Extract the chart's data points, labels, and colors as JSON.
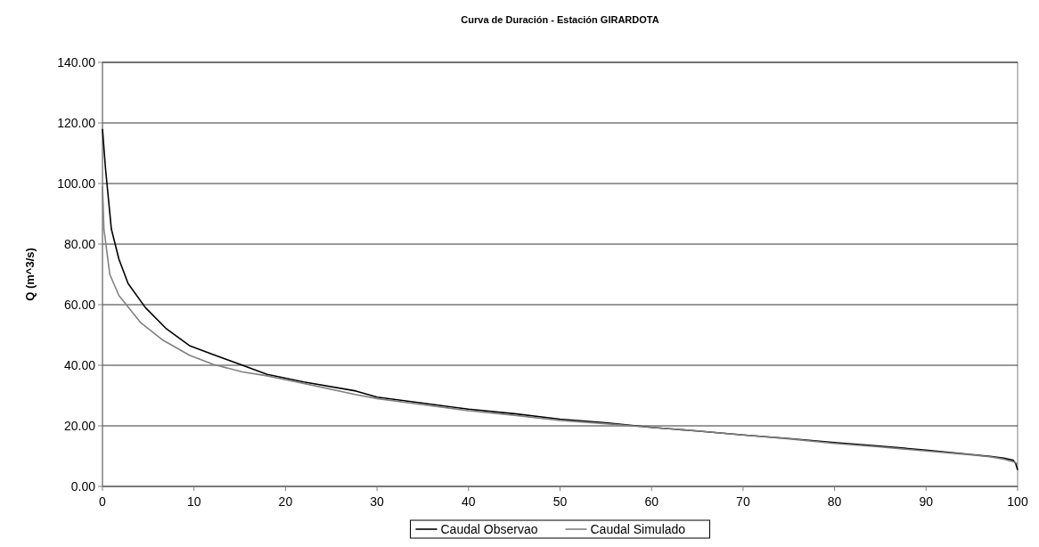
{
  "chart_data": {
    "type": "line",
    "title": "Curva de Duración - Estación GIRARDOTA",
    "ylabel": "Q (m^3/s)",
    "xlim": [
      0,
      100
    ],
    "xticks": [
      0,
      10,
      20,
      30,
      40,
      50,
      60,
      70,
      80,
      90,
      100
    ],
    "ylim": [
      0,
      140
    ],
    "yticks": [
      {
        "value": 0,
        "label": "0.00"
      },
      {
        "value": 20,
        "label": "20.00"
      },
      {
        "value": 40,
        "label": "40.00"
      },
      {
        "value": 60,
        "label": "60.00"
      },
      {
        "value": 80,
        "label": "80.00"
      },
      {
        "value": 100,
        "label": "100.00"
      },
      {
        "value": 120,
        "label": "120.00"
      },
      {
        "value": 140,
        "label": "140.00"
      }
    ],
    "grid": "y",
    "legend": "bottom",
    "marker": "none",
    "line_style": "solid",
    "series": [
      {
        "name": "Caudal Observao",
        "color": "#000000",
        "x": [
          0,
          0.33,
          0.65,
          0.97,
          1.8,
          2.8,
          4.7,
          7,
          9.5,
          12.1,
          15.3,
          18,
          22,
          27.7,
          30,
          35,
          40,
          45,
          50,
          55,
          60,
          65,
          70,
          75,
          80,
          85,
          90,
          95,
          97,
          98.5,
          99.5,
          99.8,
          100
        ],
        "values": [
          118,
          105,
          95,
          85,
          75,
          67,
          59,
          52,
          46.5,
          43.5,
          40,
          37,
          34.5,
          31.5,
          29.5,
          27.5,
          25.5,
          24,
          22.2,
          21,
          19.5,
          18.3,
          17,
          15.8,
          14.5,
          13.3,
          12,
          10.5,
          9.9,
          9.3,
          8.7,
          7.5,
          5.4
        ]
      },
      {
        "name": "Caudal Simulado",
        "color": "#808080",
        "x": [
          0,
          0.16,
          0.8,
          1.8,
          4.2,
          6.6,
          9.5,
          12.1,
          15.3,
          18,
          22,
          27.7,
          30,
          35,
          40,
          45,
          50,
          55,
          60,
          65,
          70,
          75,
          80,
          85,
          90,
          95,
          97,
          98.5,
          99.5,
          100
        ],
        "values": [
          99,
          85,
          70,
          63,
          54,
          48.3,
          43.3,
          40.3,
          37.8,
          36.5,
          34,
          30.3,
          29,
          27,
          25,
          23.5,
          21.8,
          20.7,
          19.5,
          18.3,
          17,
          15.7,
          14.2,
          13,
          11.7,
          10.4,
          9.8,
          9,
          8.2,
          7.5
        ]
      }
    ]
  }
}
